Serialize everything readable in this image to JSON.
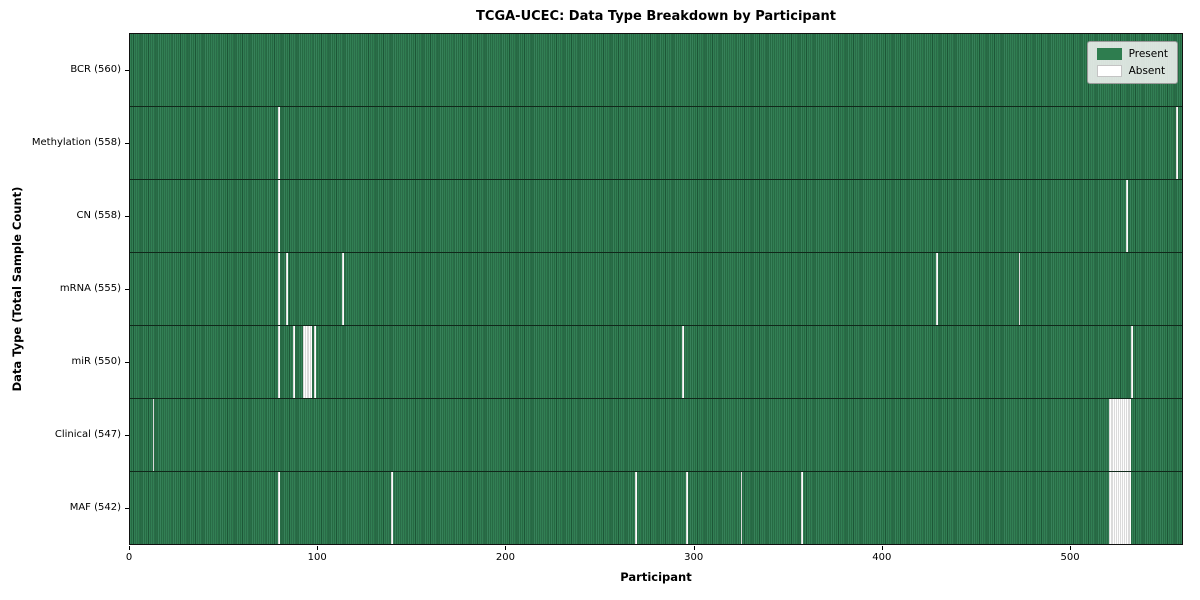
{
  "chart_data": {
    "type": "heatmap",
    "title": "TCGA-UCEC: Data Type Breakdown by Participant",
    "xlabel": "Participant",
    "ylabel": "Data Type (Total Sample Count)",
    "xlim": [
      0,
      560
    ],
    "x_ticks": [
      0,
      100,
      200,
      300,
      400,
      500
    ],
    "participants_total": 560,
    "grid": false,
    "legend_position": "upper right",
    "legend": [
      {
        "label": "Present",
        "color": "#2e7d4f"
      },
      {
        "label": "Absent",
        "color": "#ffffff"
      }
    ],
    "colors": {
      "present_green": "#2e7d4f",
      "present_green_light": "#37815a",
      "present_green_dark": "#1d5737",
      "absent_white": "#fdfdfd",
      "row_divider": "#10281a",
      "legend_bg": "#eceff4"
    },
    "rows": [
      {
        "label": "BCR (560)",
        "data_type": "BCR",
        "count": 560,
        "absent_participants": []
      },
      {
        "label": "Methylation (558)",
        "data_type": "Methylation",
        "count": 558,
        "absent_participants": [
          79,
          557
        ]
      },
      {
        "label": "CN (558)",
        "data_type": "CN",
        "count": 558,
        "absent_participants": [
          79,
          530
        ]
      },
      {
        "label": "mRNA (555)",
        "data_type": "mRNA",
        "count": 555,
        "absent_participants": [
          79,
          83,
          113,
          429,
          473
        ]
      },
      {
        "label": "miR (550)",
        "data_type": "miR",
        "count": 550,
        "absent_participants": [
          79,
          87,
          92,
          93,
          94,
          95,
          96,
          98,
          294,
          533
        ]
      },
      {
        "label": "Clinical (547)",
        "data_type": "Clinical",
        "count": 547,
        "absent_participants": [
          12,
          521,
          522,
          523,
          524,
          525,
          526,
          527,
          528,
          529,
          530,
          531,
          532
        ]
      },
      {
        "label": "MAF (542)",
        "data_type": "MAF",
        "count": 542,
        "absent_participants": [
          79,
          139,
          269,
          296,
          325,
          357,
          521,
          522,
          523,
          524,
          525,
          526,
          527,
          528,
          529,
          530,
          531,
          532
        ]
      }
    ]
  }
}
